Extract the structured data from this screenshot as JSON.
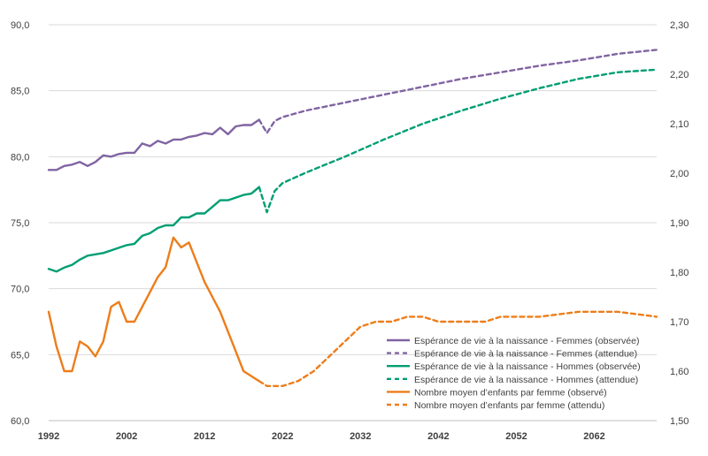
{
  "chart_data": {
    "type": "line",
    "grid": true,
    "legend_position": "bottom-right",
    "x_range": [
      1992,
      2070
    ],
    "x_ticks": [
      "1992",
      "2002",
      "2012",
      "2022",
      "2032",
      "2042",
      "2052",
      "2062"
    ],
    "y_left": {
      "range": [
        60,
        90
      ],
      "ticks": [
        "60,0",
        "65,0",
        "70,0",
        "75,0",
        "80,0",
        "85,0",
        "90,0"
      ]
    },
    "y_right": {
      "range": [
        1.5,
        2.3
      ],
      "ticks": [
        "1,50",
        "1,60",
        "1,70",
        "1,80",
        "1,90",
        "2,00",
        "2,10",
        "2,20",
        "2,30"
      ]
    },
    "series": [
      {
        "name": "Espérance de vie à la naissance - Femmes (observée)",
        "axis": "left",
        "color": "#8064a2",
        "dashed": false,
        "x": [
          1992,
          1993,
          1994,
          1995,
          1996,
          1997,
          1998,
          1999,
          2000,
          2001,
          2002,
          2003,
          2004,
          2005,
          2006,
          2007,
          2008,
          2009,
          2010,
          2011,
          2012,
          2013,
          2014,
          2015,
          2016,
          2017,
          2018,
          2019
        ],
        "y": [
          79.0,
          79.0,
          79.3,
          79.4,
          79.6,
          79.3,
          79.6,
          80.1,
          80.0,
          80.2,
          80.3,
          80.3,
          81.0,
          80.8,
          81.2,
          81.0,
          81.3,
          81.3,
          81.5,
          81.6,
          81.8,
          81.7,
          82.2,
          81.7,
          82.3,
          82.4,
          82.4,
          82.8
        ]
      },
      {
        "name": "Espérance de vie à la naissance - Femmes (attendue)",
        "axis": "left",
        "color": "#8064a2",
        "dashed": true,
        "x": [
          2019,
          2020,
          2021,
          2022,
          2025,
          2030,
          2035,
          2040,
          2045,
          2050,
          2055,
          2060,
          2065,
          2070
        ],
        "y": [
          82.8,
          81.8,
          82.7,
          83.0,
          83.5,
          84.1,
          84.7,
          85.3,
          85.9,
          86.4,
          86.9,
          87.3,
          87.8,
          88.1
        ]
      },
      {
        "name": "Espérance de vie à la naissance - Hommes (observée)",
        "axis": "left",
        "color": "#009e73",
        "dashed": false,
        "x": [
          1992,
          1993,
          1994,
          1995,
          1996,
          1997,
          1998,
          1999,
          2000,
          2001,
          2002,
          2003,
          2004,
          2005,
          2006,
          2007,
          2008,
          2009,
          2010,
          2011,
          2012,
          2013,
          2014,
          2015,
          2016,
          2017,
          2018,
          2019
        ],
        "y": [
          71.5,
          71.3,
          71.6,
          71.8,
          72.2,
          72.5,
          72.6,
          72.7,
          72.9,
          73.1,
          73.3,
          73.4,
          74.0,
          74.2,
          74.6,
          74.8,
          74.8,
          75.4,
          75.4,
          75.7,
          75.7,
          76.2,
          76.7,
          76.7,
          76.9,
          77.1,
          77.2,
          77.7
        ]
      },
      {
        "name": "Espérance de vie à la naissance - Hommes (attendue)",
        "axis": "left",
        "color": "#009e73",
        "dashed": true,
        "x": [
          2019,
          2020,
          2021,
          2022,
          2025,
          2030,
          2035,
          2040,
          2045,
          2050,
          2055,
          2060,
          2065,
          2070
        ],
        "y": [
          77.7,
          75.8,
          77.4,
          78.0,
          78.8,
          80.0,
          81.3,
          82.5,
          83.5,
          84.4,
          85.2,
          85.9,
          86.4,
          86.6
        ]
      },
      {
        "name": "Nombre moyen d’enfants par femme (observé)",
        "axis": "right",
        "color": "#ed7d1a",
        "dashed": false,
        "x": [
          1992,
          1993,
          1994,
          1995,
          1996,
          1997,
          1998,
          1999,
          2000,
          2001,
          2002,
          2003,
          2004,
          2005,
          2006,
          2007,
          2008,
          2009,
          2010,
          2011,
          2012,
          2013,
          2014,
          2015,
          2016,
          2017,
          2018,
          2019
        ],
        "y": [
          1.72,
          1.65,
          1.6,
          1.6,
          1.66,
          1.65,
          1.63,
          1.66,
          1.73,
          1.74,
          1.7,
          1.7,
          1.73,
          1.76,
          1.79,
          1.81,
          1.87,
          1.85,
          1.86,
          1.82,
          1.78,
          1.75,
          1.72,
          1.68,
          1.64,
          1.6,
          1.59,
          1.58
        ]
      },
      {
        "name": "Nombre moyen d’enfants par femme (attendu)",
        "axis": "right",
        "color": "#ed7d1a",
        "dashed": true,
        "x": [
          2019,
          2020,
          2021,
          2022,
          2024,
          2026,
          2028,
          2030,
          2032,
          2034,
          2036,
          2038,
          2040,
          2042,
          2045,
          2048,
          2050,
          2055,
          2060,
          2065,
          2070
        ],
        "y": [
          1.58,
          1.57,
          1.57,
          1.57,
          1.58,
          1.6,
          1.63,
          1.66,
          1.69,
          1.7,
          1.7,
          1.71,
          1.71,
          1.7,
          1.7,
          1.7,
          1.71,
          1.71,
          1.72,
          1.72,
          1.71
        ]
      }
    ]
  }
}
